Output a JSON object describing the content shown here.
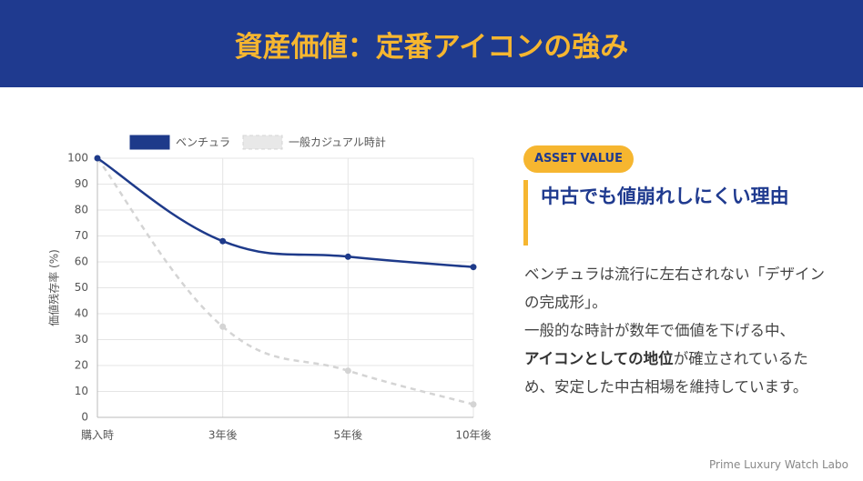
{
  "header": {
    "title": "資産価値：定番アイコンの強み"
  },
  "chart_data": {
    "type": "line",
    "categories": [
      "購入時",
      "3年後",
      "5年後",
      "10年後"
    ],
    "series": [
      {
        "name": "ベンチュラ",
        "color": "#1e3a8a",
        "values": [
          100,
          68,
          62,
          58
        ]
      },
      {
        "name": "一般カジュアル時計",
        "color": "#d4d4d4",
        "values": [
          100,
          35,
          18,
          5
        ],
        "dashed": true
      }
    ],
    "y_label": "価値残存率 (%)",
    "ylim": [
      0,
      100
    ],
    "yticks": [
      0,
      10,
      20,
      30,
      40,
      50,
      60,
      70,
      80,
      90,
      100
    ],
    "grid": true,
    "legend": "top"
  },
  "panel": {
    "badge": "ASSET VALUE",
    "heading": "中古でも値崩れしにくい理由",
    "lines": [
      [
        {
          "text": "ベンチュラは流行に左右されない「デザインの完成形」。"
        }
      ],
      [
        {
          "text": "一般的な時計が数年で価値を下げる中、"
        }
      ],
      [
        {
          "text": "アイコンとしての地位",
          "bold": true
        },
        {
          "text": "が確立されているため、安定した中古相場を維持しています。"
        }
      ]
    ]
  },
  "footer": "Prime Luxury Watch Labo"
}
